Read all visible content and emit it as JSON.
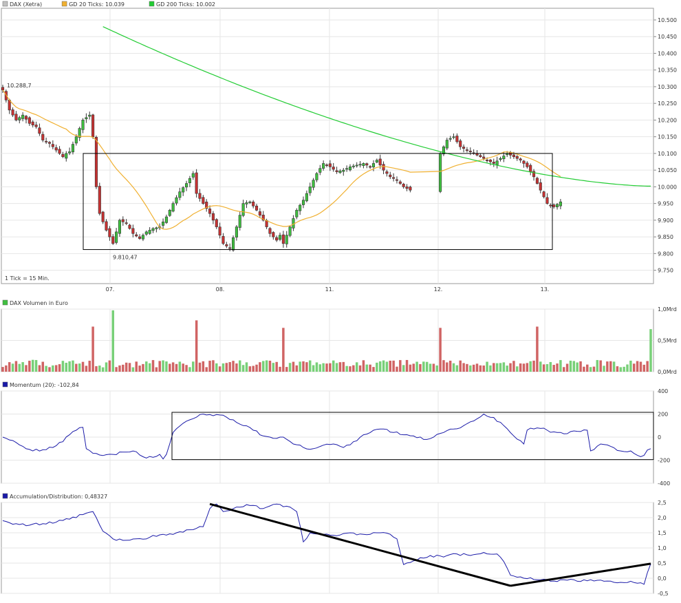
{
  "colors": {
    "up": "#3fbf3f",
    "down": "#c83232",
    "sma20": "#f0b030",
    "sma200": "#22cc33",
    "indicator": "#1a1aa8",
    "vol_up": "#78d078",
    "vol_down": "#d06464",
    "trend": "#000000"
  },
  "price_panel": {
    "legend": [
      {
        "label": "DAX (Xetra)",
        "color": "#c0c0c0"
      },
      {
        "label": "GD 20 Ticks: 10.039",
        "color": "#f0b030"
      },
      {
        "label": "GD 200 Ticks: 10.002",
        "color": "#22cc33"
      }
    ],
    "tick_note": "1 Tick = 15 Min.",
    "high_label": "10.288,7",
    "low_label": "9.810,47"
  },
  "volume_panel": {
    "title": "DAX Volumen in Euro"
  },
  "momentum_panel": {
    "title": "Momentum (20): -102,84"
  },
  "ad_panel": {
    "title": "Accumulation/Distribution: 0,48327"
  },
  "chart_data": [
    {
      "type": "candlestick",
      "title": "DAX (Xetra)",
      "x_tick_labels": [
        "07.",
        "08.",
        "11.",
        "12.",
        "13."
      ],
      "y_ticks": [
        9750,
        9800,
        9850,
        9900,
        9950,
        10000,
        10050,
        10100,
        10150,
        10200,
        10250,
        10300,
        10350,
        10400,
        10450,
        10500
      ],
      "y_tick_labels": [
        "9.750",
        "9.800",
        "9.850",
        "9.900",
        "9.950",
        "10.000",
        "10.050",
        "10.100",
        "10.150",
        "10.200",
        "10.250",
        "10.300",
        "10.350",
        "10.400",
        "10.450",
        "10.500"
      ],
      "ylim": [
        9710,
        10535
      ],
      "annotations": [
        {
          "text": "10.288,7",
          "value": 10288.7
        },
        {
          "text": "9.810,47",
          "value": 9810.47
        }
      ],
      "rectangle": {
        "y_range": [
          9812,
          10100
        ]
      },
      "close_path": [
        {
          "day": 0,
          "steps": 20,
          "points": [
            [
              0,
              10290
            ],
            [
              2,
              10230
            ],
            [
              4,
              10200
            ],
            [
              6,
              10215
            ],
            [
              8,
              10190
            ],
            [
              10,
              10180
            ],
            [
              12,
              10140
            ],
            [
              14,
              10130
            ],
            [
              16,
              10110
            ],
            [
              18,
              10090
            ],
            [
              19,
              10100
            ]
          ]
        },
        {
          "day": 0,
          "steps": 20,
          "points": [
            [
              20,
              10105
            ],
            [
              22,
              10150
            ],
            [
              24,
              10200
            ],
            [
              26,
              10215
            ]
          ]
        },
        {
          "day": 1,
          "steps": 20,
          "points": [
            [
              0,
              10150
            ],
            [
              1,
              10000
            ],
            [
              2,
              9920
            ],
            [
              4,
              9870
            ],
            [
              6,
              9830
            ],
            [
              8,
              9900
            ],
            [
              10,
              9890
            ],
            [
              12,
              9860
            ],
            [
              14,
              9845
            ],
            [
              16,
              9865
            ],
            [
              18,
              9875
            ],
            [
              20,
              9880
            ],
            [
              22,
              9910
            ],
            [
              24,
              9950
            ],
            [
              26,
              9985
            ],
            [
              28,
              10010
            ],
            [
              30,
              10040
            ],
            [
              32,
              10070
            ],
            [
              34,
              10075
            ],
            [
              36,
              10060
            ],
            [
              38,
              10010
            ],
            [
              40,
              9990
            ],
            [
              42,
              9960
            ],
            [
              44,
              9980
            ],
            [
              46,
              10010
            ],
            [
              48,
              10040
            ],
            [
              50,
              10050
            ],
            [
              52,
              10090
            ],
            [
              54,
              10060
            ],
            [
              56,
              10010
            ]
          ]
        },
        {
          "day": 2,
          "steps": 20,
          "points": [
            [
              0,
              9980
            ],
            [
              2,
              9950
            ],
            [
              4,
              9920
            ],
            [
              6,
              9880
            ],
            [
              8,
              9830
            ],
            [
              10,
              9815
            ],
            [
              12,
              9880
            ],
            [
              14,
              9950
            ],
            [
              16,
              9955
            ],
            [
              18,
              9930
            ],
            [
              20,
              9900
            ],
            [
              22,
              9860
            ],
            [
              24,
              9840
            ],
            [
              26,
              9870
            ],
            [
              28,
              9900
            ],
            [
              30,
              9920
            ],
            [
              32,
              9930
            ],
            [
              34,
              9945
            ],
            [
              36,
              9950
            ],
            [
              38,
              9970
            ],
            [
              40,
              9945
            ],
            [
              42,
              9920
            ],
            [
              44,
              9940
            ],
            [
              46,
              9910
            ],
            [
              48,
              9850
            ],
            [
              50,
              9840
            ]
          ]
        },
        {
          "day": 3,
          "steps": 20,
          "points": [
            [
              0,
              9830
            ],
            [
              2,
              9880
            ],
            [
              4,
              9930
            ],
            [
              6,
              9960
            ],
            [
              8,
              10000
            ],
            [
              10,
              10040
            ],
            [
              12,
              10070
            ],
            [
              14,
              10060
            ],
            [
              16,
              10045
            ],
            [
              18,
              10050
            ],
            [
              20,
              10060
            ],
            [
              22,
              10065
            ],
            [
              24,
              10070
            ],
            [
              26,
              10060
            ],
            [
              28,
              10080
            ],
            [
              30,
              10050
            ],
            [
              32,
              10030
            ],
            [
              34,
              10020
            ],
            [
              36,
              10000
            ],
            [
              38,
              9990
            ]
          ]
        },
        {
          "day": 4,
          "steps": 20,
          "points": [
            [
              0,
              10100
            ],
            [
              2,
              10140
            ],
            [
              4,
              10150
            ],
            [
              6,
              10120
            ],
            [
              8,
              10110
            ],
            [
              10,
              10100
            ],
            [
              12,
              10090
            ],
            [
              14,
              10080
            ],
            [
              16,
              10070
            ],
            [
              18,
              10085
            ],
            [
              20,
              10100
            ],
            [
              22,
              10090
            ],
            [
              24,
              10080
            ],
            [
              26,
              10060
            ],
            [
              28,
              10030
            ],
            [
              30,
              9990
            ],
            [
              32,
              9950
            ],
            [
              34,
              9940
            ],
            [
              36,
              9955
            ]
          ]
        }
      ],
      "series": [
        {
          "name": "GD 20 Ticks",
          "last_value": 10039
        },
        {
          "name": "GD 200 Ticks",
          "last_value": 10002,
          "start_value": 10480
        }
      ]
    },
    {
      "type": "bar",
      "title": "DAX Volumen in Euro",
      "y_tick_labels": [
        "1,0Mrd",
        "0,5Mrd",
        "0,0Mrd"
      ],
      "y_ticks": [
        1.0,
        0.5,
        0.0
      ],
      "ylim": [
        0,
        1.0
      ],
      "spikes_mrd": [
        {
          "after_day": 0,
          "index": 0,
          "value": 0.72,
          "direction": "down"
        },
        {
          "after_day": 1,
          "index": 0,
          "value": 0.98,
          "direction": "up"
        },
        {
          "after_day": 2,
          "index": 0,
          "value": 0.82,
          "direction": "down"
        },
        {
          "after_day": 3,
          "index": 0,
          "value": 0.7,
          "direction": "down"
        },
        {
          "after_day": 4,
          "index": 0,
          "value": 0.72,
          "direction": "down"
        },
        {
          "after_day": 5,
          "index": 0,
          "value": 0.68,
          "direction": "up"
        }
      ]
    },
    {
      "type": "line",
      "title": "Momentum (20)",
      "last_value": -102.84,
      "y_ticks": [
        400,
        200,
        0,
        -200,
        -400
      ],
      "y_tick_labels": [
        "400",
        "200",
        "0",
        "-200",
        "-400"
      ],
      "ylim": [
        -400,
        400
      ],
      "rectangle": {
        "y_range": [
          -195,
          215
        ]
      },
      "values_path": [
        [
          0,
          0
        ],
        [
          3,
          -30
        ],
        [
          6,
          -80
        ],
        [
          9,
          -120
        ],
        [
          12,
          -110
        ],
        [
          15,
          -90
        ],
        [
          18,
          -40
        ],
        [
          20,
          20
        ],
        [
          22,
          60
        ],
        [
          24,
          85
        ],
        [
          25,
          -100
        ],
        [
          27,
          -140
        ],
        [
          30,
          -160
        ],
        [
          33,
          -150
        ],
        [
          36,
          -130
        ],
        [
          39,
          -120
        ],
        [
          42,
          -170
        ],
        [
          45,
          -175
        ],
        [
          47,
          -150
        ],
        [
          48,
          -190
        ],
        [
          49,
          -150
        ],
        [
          51,
          40
        ],
        [
          54,
          120
        ],
        [
          57,
          160
        ],
        [
          60,
          200
        ],
        [
          63,
          185
        ],
        [
          66,
          190
        ],
        [
          69,
          150
        ],
        [
          72,
          100
        ],
        [
          75,
          60
        ],
        [
          78,
          10
        ],
        [
          81,
          -10
        ],
        [
          84,
          0
        ],
        [
          87,
          -60
        ],
        [
          90,
          -90
        ],
        [
          93,
          -100
        ],
        [
          96,
          -70
        ],
        [
          99,
          -60
        ],
        [
          102,
          -90
        ],
        [
          105,
          -40
        ],
        [
          108,
          20
        ],
        [
          111,
          60
        ],
        [
          114,
          70
        ],
        [
          117,
          40
        ],
        [
          120,
          20
        ],
        [
          123,
          10
        ],
        [
          126,
          -20
        ],
        [
          129,
          0
        ],
        [
          132,
          40
        ],
        [
          135,
          70
        ],
        [
          138,
          100
        ],
        [
          141,
          140
        ],
        [
          144,
          200
        ],
        [
          147,
          170
        ],
        [
          150,
          100
        ],
        [
          153,
          10
        ],
        [
          156,
          -60
        ],
        [
          157,
          60
        ],
        [
          160,
          80
        ],
        [
          163,
          60
        ],
        [
          166,
          40
        ],
        [
          169,
          30
        ],
        [
          172,
          50
        ],
        [
          175,
          60
        ],
        [
          176,
          -120
        ],
        [
          179,
          -60
        ],
        [
          182,
          -80
        ],
        [
          185,
          -120
        ],
        [
          188,
          -120
        ],
        [
          191,
          -170
        ],
        [
          194,
          -100
        ]
      ]
    },
    {
      "type": "line",
      "title": "Accumulation/Distribution",
      "last_value": 0.48327,
      "y_ticks": [
        2.5,
        2.0,
        1.5,
        1.0,
        0.5,
        0.0,
        -0.5
      ],
      "y_tick_labels": [
        "2,5",
        "2,0",
        "1,5",
        "1,0",
        "0,5",
        "0,0",
        "-0,5"
      ],
      "ylim": [
        -0.5,
        2.5
      ],
      "values_path": [
        [
          0,
          1.9
        ],
        [
          4,
          1.8
        ],
        [
          8,
          1.75
        ],
        [
          12,
          1.8
        ],
        [
          16,
          1.85
        ],
        [
          20,
          1.95
        ],
        [
          24,
          2.1
        ],
        [
          27,
          2.2
        ],
        [
          30,
          1.55
        ],
        [
          33,
          1.3
        ],
        [
          36,
          1.25
        ],
        [
          40,
          1.3
        ],
        [
          44,
          1.35
        ],
        [
          48,
          1.45
        ],
        [
          52,
          1.5
        ],
        [
          56,
          1.6
        ],
        [
          60,
          1.7
        ],
        [
          62,
          2.3
        ],
        [
          64,
          2.45
        ],
        [
          66,
          2.2
        ],
        [
          70,
          2.35
        ],
        [
          74,
          2.4
        ],
        [
          78,
          2.3
        ],
        [
          82,
          2.45
        ],
        [
          86,
          2.35
        ],
        [
          88,
          2.2
        ],
        [
          90,
          1.2
        ],
        [
          92,
          1.5
        ],
        [
          96,
          1.45
        ],
        [
          100,
          1.4
        ],
        [
          104,
          1.5
        ],
        [
          108,
          1.45
        ],
        [
          112,
          1.5
        ],
        [
          116,
          1.45
        ],
        [
          118,
          1.3
        ],
        [
          120,
          0.45
        ],
        [
          124,
          0.6
        ],
        [
          128,
          0.75
        ],
        [
          132,
          0.7
        ],
        [
          136,
          0.8
        ],
        [
          140,
          0.75
        ],
        [
          144,
          0.85
        ],
        [
          148,
          0.8
        ],
        [
          150,
          0.55
        ],
        [
          152,
          0.1
        ],
        [
          156,
          0.0
        ],
        [
          160,
          -0.05
        ],
        [
          164,
          -0.1
        ],
        [
          168,
          -0.05
        ],
        [
          172,
          -0.1
        ],
        [
          176,
          -0.05
        ],
        [
          180,
          -0.1
        ],
        [
          184,
          -0.15
        ],
        [
          188,
          -0.1
        ],
        [
          192,
          -0.2
        ],
        [
          194,
          0.48
        ]
      ],
      "trendlines": [
        {
          "from": [
            62,
            2.45
          ],
          "to": [
            152,
            -0.25
          ]
        },
        {
          "from": [
            152,
            -0.25
          ],
          "to": [
            194,
            0.48
          ]
        }
      ]
    }
  ]
}
